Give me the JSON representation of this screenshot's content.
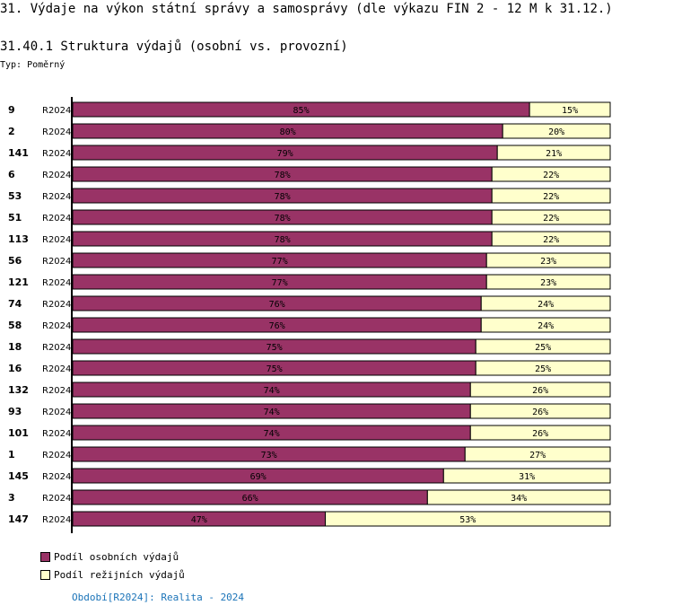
{
  "title": "31. Výdaje na výkon státní správy a samosprávy (dle výkazu FIN 2 - 12 M k 31.12.)",
  "subtitle": "31.40.1 Struktura výdajů (osobní vs. provozní)",
  "type_label": "Typ: Poměrný",
  "period_note": "Období[R2024]: Realita - 2024",
  "chart_data": {
    "type": "bar",
    "orientation": "horizontal",
    "stacked": "percent",
    "categories": [
      "9",
      "2",
      "141",
      "6",
      "53",
      "51",
      "113",
      "56",
      "121",
      "74",
      "58",
      "18",
      "16",
      "132",
      "93",
      "101",
      "1",
      "145",
      "3",
      "147"
    ],
    "period": "R2024",
    "series": [
      {
        "name": "Podíl osobních výdajů",
        "color": "#993366",
        "values": [
          85,
          80,
          79,
          78,
          78,
          78,
          78,
          77,
          77,
          76,
          76,
          75,
          75,
          74,
          74,
          74,
          73,
          69,
          66,
          47
        ]
      },
      {
        "name": "Podíl režijních výdajů",
        "color": "#ffffcc",
        "values": [
          15,
          20,
          21,
          22,
          22,
          22,
          22,
          23,
          23,
          24,
          24,
          25,
          25,
          26,
          26,
          26,
          27,
          31,
          34,
          53
        ]
      }
    ],
    "xlim": [
      0,
      100
    ],
    "legend": "bottom-left"
  }
}
